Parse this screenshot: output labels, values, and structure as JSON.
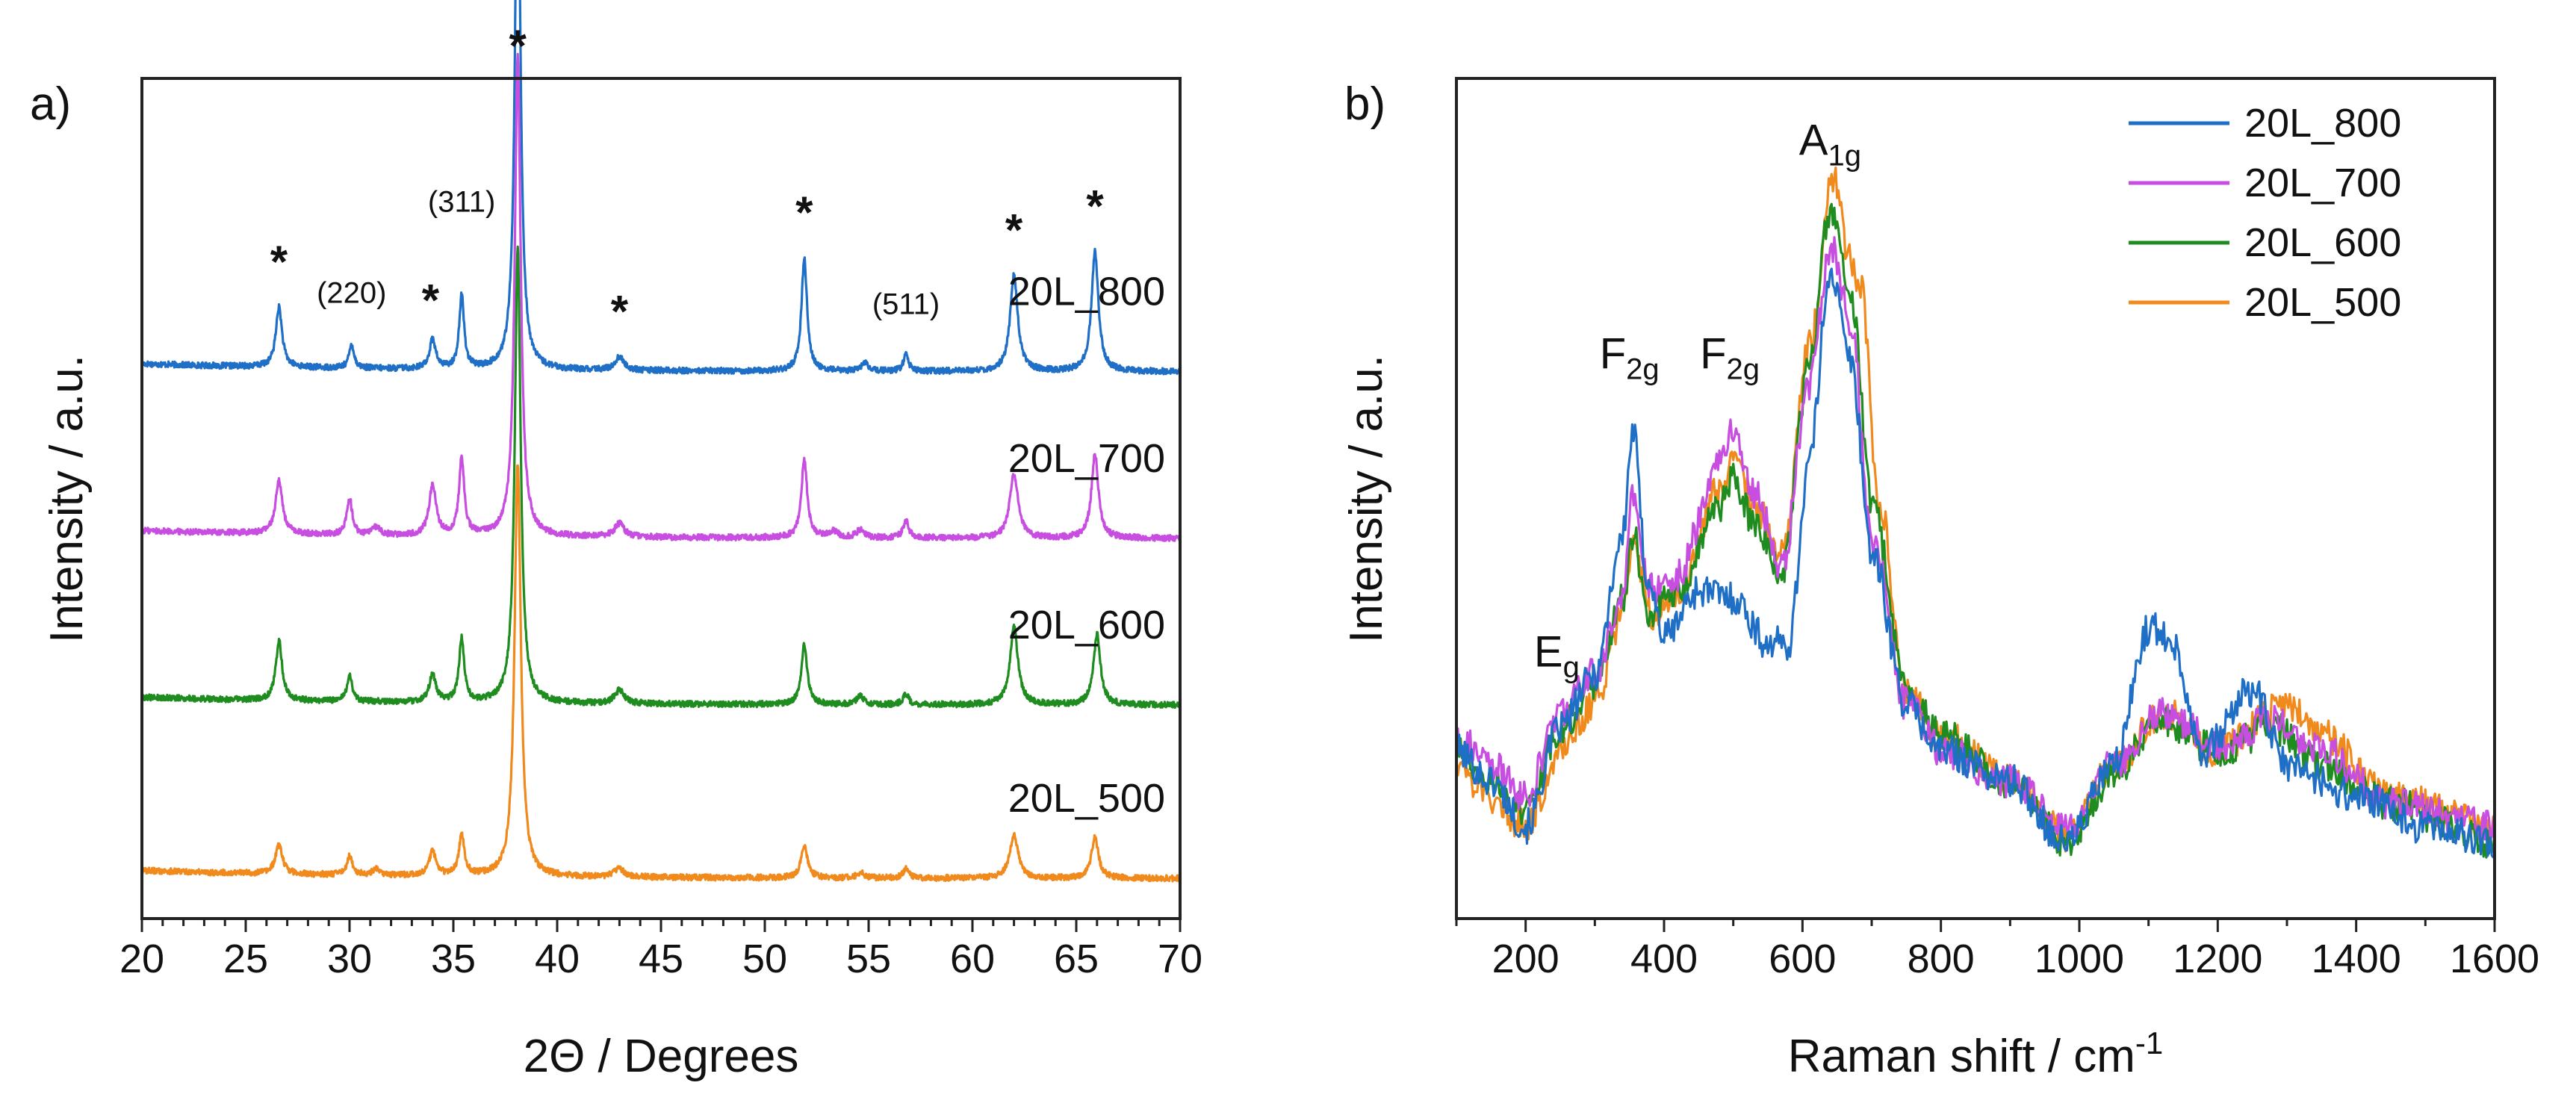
{
  "figure": {
    "panels": [
      {
        "panel_label": "a)",
        "xlabel": "2Θ / Degrees",
        "ylabel": "Intensity / a.u."
      },
      {
        "panel_label": "b)",
        "xlabel_main": "Raman shift / cm",
        "xlabel_sup": "-1",
        "ylabel": "Intensity / a.u."
      }
    ]
  },
  "chart_data": [
    {
      "type": "line",
      "title": "",
      "xlabel": "2Θ / Degrees",
      "ylabel": "Intensity / a.u.",
      "xlim": [
        20,
        70
      ],
      "ylim": [
        0,
        6.3
      ],
      "xticks": [
        20,
        25,
        30,
        35,
        40,
        45,
        50,
        55,
        60,
        65,
        70
      ],
      "grid": false,
      "series": [
        {
          "name": "20L_800",
          "color": "#1f6fc6",
          "offset": 4.1,
          "peaks": [
            [
              26.6,
              0.45,
              0.18
            ],
            [
              30.1,
              0.18,
              0.14
            ],
            [
              34.0,
              0.22,
              0.18
            ],
            [
              35.4,
              0.55,
              0.14
            ],
            [
              38.1,
              4.1,
              0.16
            ],
            [
              43.0,
              0.1,
              0.25
            ],
            [
              51.9,
              0.85,
              0.16
            ],
            [
              54.8,
              0.06,
              0.2
            ],
            [
              56.8,
              0.12,
              0.15
            ],
            [
              62.0,
              0.72,
              0.22
            ],
            [
              65.9,
              0.9,
              0.2
            ]
          ]
        },
        {
          "name": "20L_700",
          "color": "#c74ee0",
          "offset": 2.85,
          "peaks": [
            [
              26.6,
              0.4,
              0.2
            ],
            [
              30.0,
              0.28,
              0.15
            ],
            [
              31.3,
              0.06,
              0.2
            ],
            [
              34.0,
              0.38,
              0.2
            ],
            [
              35.4,
              0.58,
              0.15
            ],
            [
              38.1,
              3.6,
              0.17
            ],
            [
              43.0,
              0.1,
              0.28
            ],
            [
              51.9,
              0.58,
              0.17
            ],
            [
              53.3,
              0.05,
              0.25
            ],
            [
              54.6,
              0.06,
              0.22
            ],
            [
              56.8,
              0.13,
              0.16
            ],
            [
              62.0,
              0.48,
              0.24
            ],
            [
              65.9,
              0.63,
              0.2
            ]
          ]
        },
        {
          "name": "20L_600",
          "color": "#1e8c1e",
          "offset": 1.6,
          "peaks": [
            [
              26.6,
              0.45,
              0.18
            ],
            [
              30.0,
              0.2,
              0.15
            ],
            [
              34.0,
              0.2,
              0.2
            ],
            [
              35.4,
              0.48,
              0.15
            ],
            [
              38.1,
              3.4,
              0.17
            ],
            [
              43.0,
              0.1,
              0.28
            ],
            [
              51.9,
              0.45,
              0.17
            ],
            [
              54.6,
              0.06,
              0.22
            ],
            [
              56.8,
              0.08,
              0.16
            ],
            [
              62.0,
              0.58,
              0.23
            ],
            [
              66.0,
              0.53,
              0.2
            ]
          ]
        },
        {
          "name": "20L_500",
          "color": "#f08a1c",
          "offset": 0.3,
          "peaks": [
            [
              26.6,
              0.22,
              0.2
            ],
            [
              30.0,
              0.14,
              0.16
            ],
            [
              31.3,
              0.05,
              0.2
            ],
            [
              34.0,
              0.18,
              0.2
            ],
            [
              35.4,
              0.3,
              0.16
            ],
            [
              38.1,
              3.1,
              0.18
            ],
            [
              43.0,
              0.06,
              0.3
            ],
            [
              51.9,
              0.25,
              0.18
            ],
            [
              54.6,
              0.04,
              0.22
            ],
            [
              56.8,
              0.07,
              0.16
            ],
            [
              62.0,
              0.33,
              0.24
            ],
            [
              65.9,
              0.31,
              0.2
            ]
          ]
        }
      ],
      "series_labels": [
        "20L_800",
        "20L_700",
        "20L_600",
        "20L_500"
      ],
      "annotations": {
        "stars": [
          "*",
          "*",
          "*",
          "*",
          "*",
          "*",
          "*"
        ],
        "stars_x": [
          26.6,
          33.9,
          38.1,
          43.0,
          51.9,
          62.0,
          65.9
        ],
        "hkl": [
          "(220)",
          "(311)",
          "(511)"
        ],
        "hkl_x": [
          30.1,
          35.4,
          56.8
        ]
      }
    },
    {
      "type": "line",
      "title": "",
      "xlabel": "Raman shift / cm-1",
      "ylabel": "Intensity / a.u.",
      "xlim": [
        100,
        1600
      ],
      "ylim": [
        0,
        1.1
      ],
      "xticks": [
        200,
        400,
        600,
        800,
        1000,
        1200,
        1400,
        1600
      ],
      "grid": false,
      "legend_position": "top-right",
      "series": [
        {
          "name": "20L_800",
          "color": "#1f6fc6",
          "anchors": [
            [
              100,
              0.22
            ],
            [
              150,
              0.18
            ],
            [
              200,
              0.12
            ],
            [
              250,
              0.25
            ],
            [
              300,
              0.32
            ],
            [
              340,
              0.5
            ],
            [
              355,
              0.64
            ],
            [
              375,
              0.45
            ],
            [
              400,
              0.37
            ],
            [
              450,
              0.43
            ],
            [
              500,
              0.42
            ],
            [
              550,
              0.36
            ],
            [
              580,
              0.36
            ],
            [
              610,
              0.6
            ],
            [
              640,
              0.85
            ],
            [
              670,
              0.73
            ],
            [
              700,
              0.48
            ],
            [
              750,
              0.28
            ],
            [
              800,
              0.22
            ],
            [
              900,
              0.18
            ],
            [
              980,
              0.1
            ],
            [
              1050,
              0.2
            ],
            [
              1100,
              0.38
            ],
            [
              1130,
              0.37
            ],
            [
              1180,
              0.22
            ],
            [
              1250,
              0.3
            ],
            [
              1300,
              0.2
            ],
            [
              1400,
              0.16
            ],
            [
              1500,
              0.12
            ],
            [
              1600,
              0.1
            ]
          ]
        },
        {
          "name": "20L_700",
          "color": "#c74ee0",
          "anchors": [
            [
              100,
              0.24
            ],
            [
              150,
              0.2
            ],
            [
              200,
              0.16
            ],
            [
              250,
              0.27
            ],
            [
              300,
              0.32
            ],
            [
              340,
              0.42
            ],
            [
              355,
              0.55
            ],
            [
              380,
              0.43
            ],
            [
              420,
              0.45
            ],
            [
              480,
              0.6
            ],
            [
              500,
              0.64
            ],
            [
              530,
              0.56
            ],
            [
              570,
              0.46
            ],
            [
              610,
              0.7
            ],
            [
              640,
              0.88
            ],
            [
              670,
              0.78
            ],
            [
              700,
              0.5
            ],
            [
              750,
              0.28
            ],
            [
              800,
              0.22
            ],
            [
              900,
              0.18
            ],
            [
              980,
              0.12
            ],
            [
              1050,
              0.2
            ],
            [
              1120,
              0.27
            ],
            [
              1200,
              0.23
            ],
            [
              1280,
              0.26
            ],
            [
              1350,
              0.22
            ],
            [
              1450,
              0.15
            ],
            [
              1600,
              0.12
            ]
          ]
        },
        {
          "name": "20L_600",
          "color": "#1e8c1e",
          "anchors": [
            [
              100,
              0.22
            ],
            [
              150,
              0.18
            ],
            [
              200,
              0.14
            ],
            [
              250,
              0.25
            ],
            [
              300,
              0.3
            ],
            [
              340,
              0.42
            ],
            [
              355,
              0.5
            ],
            [
              380,
              0.4
            ],
            [
              420,
              0.43
            ],
            [
              480,
              0.54
            ],
            [
              500,
              0.58
            ],
            [
              530,
              0.52
            ],
            [
              570,
              0.45
            ],
            [
              610,
              0.72
            ],
            [
              640,
              0.93
            ],
            [
              670,
              0.82
            ],
            [
              700,
              0.55
            ],
            [
              750,
              0.3
            ],
            [
              800,
              0.24
            ],
            [
              900,
              0.18
            ],
            [
              980,
              0.1
            ],
            [
              1050,
              0.19
            ],
            [
              1120,
              0.26
            ],
            [
              1200,
              0.22
            ],
            [
              1280,
              0.25
            ],
            [
              1350,
              0.2
            ],
            [
              1450,
              0.15
            ],
            [
              1600,
              0.1
            ]
          ]
        },
        {
          "name": "20L_500",
          "color": "#f08a1c",
          "anchors": [
            [
              100,
              0.2
            ],
            [
              150,
              0.16
            ],
            [
              200,
              0.12
            ],
            [
              250,
              0.22
            ],
            [
              300,
              0.28
            ],
            [
              340,
              0.4
            ],
            [
              355,
              0.5
            ],
            [
              380,
              0.4
            ],
            [
              420,
              0.43
            ],
            [
              480,
              0.56
            ],
            [
              500,
              0.6
            ],
            [
              530,
              0.54
            ],
            [
              570,
              0.48
            ],
            [
              610,
              0.75
            ],
            [
              645,
              0.97
            ],
            [
              665,
              0.88
            ],
            [
              685,
              0.82
            ],
            [
              710,
              0.55
            ],
            [
              750,
              0.3
            ],
            [
              800,
              0.24
            ],
            [
              900,
              0.18
            ],
            [
              980,
              0.11
            ],
            [
              1050,
              0.2
            ],
            [
              1120,
              0.27
            ],
            [
              1200,
              0.22
            ],
            [
              1300,
              0.28
            ],
            [
              1350,
              0.24
            ],
            [
              1450,
              0.16
            ],
            [
              1600,
              0.12
            ]
          ]
        }
      ],
      "legend": [
        "20L_800",
        "20L_700",
        "20L_600",
        "20L_500"
      ],
      "annotations": [
        {
          "main": "E",
          "sub": "g",
          "x": 245,
          "y": 0.33
        },
        {
          "main": "F",
          "sub": "2g",
          "x": 350,
          "y": 0.72
        },
        {
          "main": "F",
          "sub": "2g",
          "x": 495,
          "y": 0.72
        },
        {
          "main": "A",
          "sub": "1g",
          "x": 640,
          "y": 1.0
        }
      ]
    }
  ]
}
